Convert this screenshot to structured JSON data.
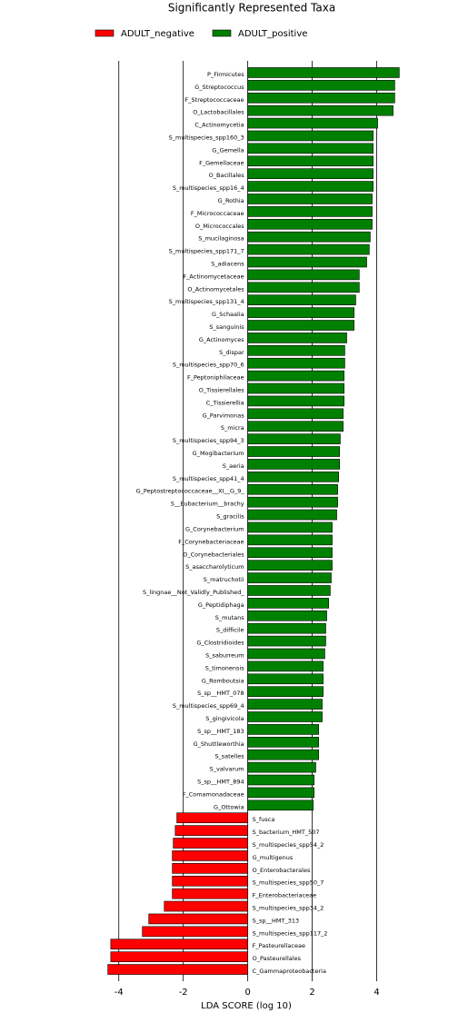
{
  "chart_data": {
    "type": "barh",
    "title": "Significantly Represented Taxa",
    "xlabel": "LDA SCORE (log 10)",
    "categories": [
      "P_Firmicutes",
      "G_Streptococcus",
      "F_Streptococcaceae",
      "O_Lactobacillales",
      "C_Actinomycetia",
      "S_multispecies_spp160_3",
      "G_Gemella",
      "F_Gemellaceae",
      "O_Bacillales",
      "S_multispecies_spp16_4",
      "G_Rothia",
      "F_Micrococcaceae",
      "O_Micrococcales",
      "S_mucilaginosa",
      "S_multispecies_spp171_7",
      "S_adiacens",
      "F_Actinomycetaceae",
      "O_Actinomycetales",
      "S_multispecies_spp131_4",
      "G_Schaalia",
      "S_sanguinis",
      "G_Actinomyces",
      "S_dispar",
      "S_multispecies_spp70_6",
      "F_Peptoniphilaceae",
      "O_Tissierellales",
      "C_Tissierellia",
      "G_Parvimonas",
      "S_micra",
      "S_multispecies_spp94_3",
      "G_Mogibacterium",
      "S_aeria",
      "S_multispecies_spp41_4",
      "G_Peptostreptococcaceae__XI__G_9_",
      "S__Eubacterium__brachy",
      "S_gracilis",
      "G_Corynebacterium",
      "F_Corynebacteriaceae",
      "O_Corynebacteriales",
      "S_asaccharolyticum",
      "S_matruchotii",
      "S_lingnae__Not_Validly_Published_",
      "G_Peptidiphaga",
      "S_mutans",
      "S_difficile",
      "G_Clostridioides",
      "S_saburreum",
      "S_timonensis",
      "G_Romboutsia",
      "S_sp__HMT_078",
      "S_multispecies_spp69_4",
      "S_gingivicola",
      "S_sp__HMT_183",
      "G_Shuttleworthia",
      "S_satelles",
      "S_valvarum",
      "S_sp__HMT_894",
      "F_Comamonadaceae",
      "G_Ottowia",
      "S_fusca",
      "S_bacterium_HMT_507",
      "S_multispecies_spp54_2",
      "G_multigenus",
      "O_Enterobacterales",
      "S_multispecies_spp50_7",
      "F_Enterobacteriaceae",
      "S_multispecies_spp34_2",
      "S_sp__HMT_313",
      "S_multispecies_spp117_2",
      "F_Pasteurellaceae",
      "O_Pasteurellales",
      "C_Gammaproteobacteria"
    ],
    "series": [
      {
        "name": "ADULT_negative",
        "color": "#ff0000",
        "values": [
          null,
          null,
          null,
          null,
          null,
          null,
          null,
          null,
          null,
          null,
          null,
          null,
          null,
          null,
          null,
          null,
          null,
          null,
          null,
          null,
          null,
          null,
          null,
          null,
          null,
          null,
          null,
          null,
          null,
          null,
          null,
          null,
          null,
          null,
          null,
          null,
          null,
          null,
          null,
          null,
          null,
          null,
          null,
          null,
          null,
          null,
          null,
          null,
          null,
          null,
          null,
          null,
          null,
          null,
          null,
          null,
          null,
          null,
          null,
          -2.2,
          -2.25,
          -2.31,
          -2.34,
          -2.34,
          -2.34,
          -2.34,
          -2.59,
          -3.07,
          -3.27,
          -4.25,
          -4.25,
          -4.34
        ]
      },
      {
        "name": "ADULT_positive",
        "color": "#008000",
        "values": [
          4.7,
          4.56,
          4.56,
          4.51,
          4.03,
          3.89,
          3.89,
          3.89,
          3.89,
          3.89,
          3.86,
          3.86,
          3.86,
          3.8,
          3.77,
          3.69,
          3.46,
          3.46,
          3.35,
          3.3,
          3.3,
          3.07,
          3.01,
          3.01,
          2.99,
          2.99,
          2.99,
          2.96,
          2.96,
          2.87,
          2.85,
          2.85,
          2.82,
          2.79,
          2.79,
          2.76,
          2.62,
          2.62,
          2.62,
          2.62,
          2.59,
          2.56,
          2.51,
          2.45,
          2.42,
          2.42,
          2.39,
          2.34,
          2.34,
          2.34,
          2.31,
          2.31,
          2.2,
          2.2,
          2.2,
          2.11,
          2.06,
          2.06,
          2.03,
          null,
          null,
          null,
          null,
          null,
          null,
          null,
          null,
          null,
          null,
          null,
          null,
          null
        ]
      }
    ],
    "xlim": [
      -4.5,
      5.0
    ],
    "xticks": [
      -4,
      -2,
      0,
      2,
      4
    ],
    "grid": true
  }
}
